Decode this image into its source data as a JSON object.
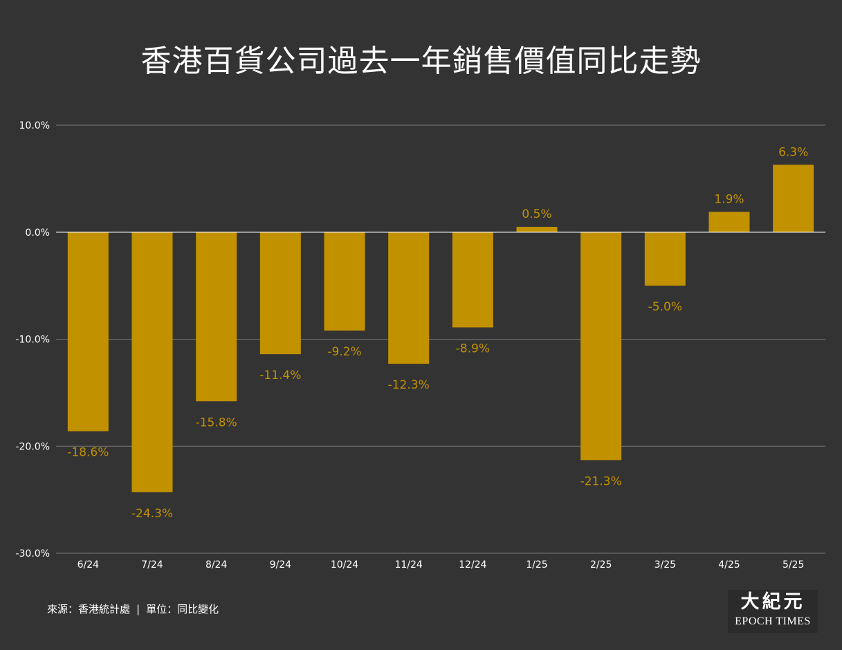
{
  "title": "香港百貨公司過去一年銷售價值同比走勢",
  "footer": {
    "source": "來源：香港統計處",
    "separator": "|",
    "unit": "單位：同比變化"
  },
  "logo": {
    "chinese": "大紀元",
    "english": "EPOCH TIMES"
  },
  "colors": {
    "background": "#333333",
    "bar": "#c29100",
    "value_label": "#c29100",
    "gridline": "#7a7a7a",
    "zero_line": "#ffffff",
    "text": "#ffffff"
  },
  "chart_data": {
    "type": "bar",
    "categories": [
      "6/24",
      "7/24",
      "8/24",
      "9/24",
      "10/24",
      "11/24",
      "12/24",
      "1/25",
      "2/25",
      "3/25",
      "4/25",
      "5/25"
    ],
    "values": [
      -18.6,
      -24.3,
      -15.8,
      -11.4,
      -9.2,
      -12.3,
      -8.9,
      0.5,
      -21.3,
      -5.0,
      1.9,
      6.3
    ],
    "value_labels": [
      "-18.6%",
      "-24.3%",
      "-15.8%",
      "-11.4%",
      "-9.2%",
      "-12.3%",
      "-8.9%",
      "0.5%",
      "-21.3%",
      "-5.0%",
      "1.9%",
      "6.3%"
    ],
    "ylim": [
      -30,
      10
    ],
    "yticks": [
      10,
      0,
      -10,
      -20,
      -30
    ],
    "ytick_labels": [
      "10.0%",
      "0.0%",
      "-10.0%",
      "-20.0%",
      "-30.0%"
    ],
    "xlabel": "",
    "ylabel": "",
    "grid": true,
    "legend": "none"
  }
}
